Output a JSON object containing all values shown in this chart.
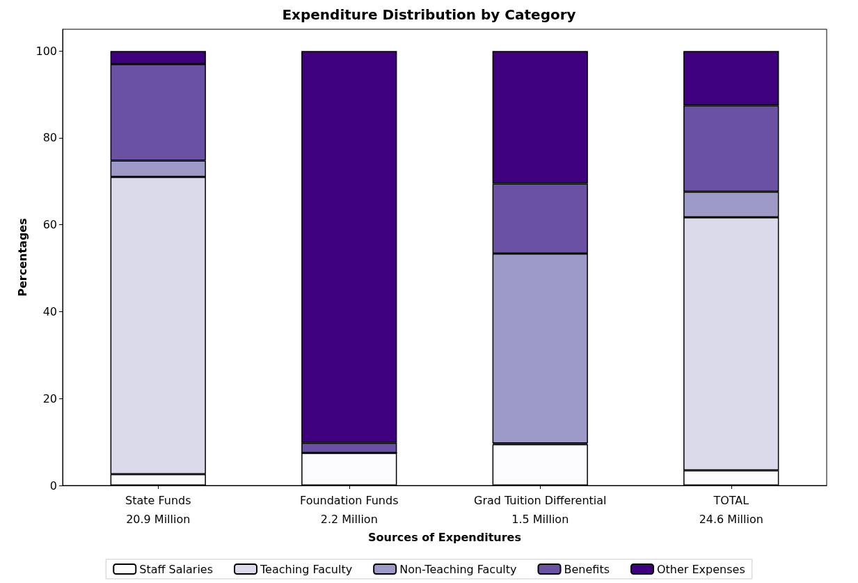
{
  "chart_data": {
    "type": "bar",
    "title": "Expenditure Distribution by Category",
    "xlabel": "Sources of Expenditures",
    "ylabel": "Percentages",
    "categories": [
      "State Funds\n20.9 Million",
      "Foundation Funds\n2.2 Million",
      "Grad Tuition Differential\n1.5 Million",
      "TOTAL\n24.6 Million"
    ],
    "stacked": true,
    "ylim": [
      0,
      105
    ],
    "yticks": [
      0,
      20,
      40,
      60,
      80,
      100
    ],
    "grid": false,
    "legend": "bottom",
    "series": [
      {
        "name": "Staff Salaries",
        "color": "#fcfbfd",
        "values": [
          2.6,
          7.5,
          9.5,
          3.5
        ]
      },
      {
        "name": "Teaching Faculty",
        "color": "#dadaeb",
        "values": [
          68.4,
          0,
          0.2,
          58.2
        ]
      },
      {
        "name": "Non-Teaching Faculty",
        "color": "#9e9ac8",
        "values": [
          3.8,
          0,
          43.7,
          5.9
        ]
      },
      {
        "name": "Benefits",
        "color": "#6a51a3",
        "values": [
          22.2,
          2.3,
          16.1,
          19.9
        ]
      },
      {
        "name": "Other Expenses",
        "color": "#3f007d",
        "values": [
          3.0,
          90.2,
          30.5,
          12.5
        ]
      }
    ]
  }
}
